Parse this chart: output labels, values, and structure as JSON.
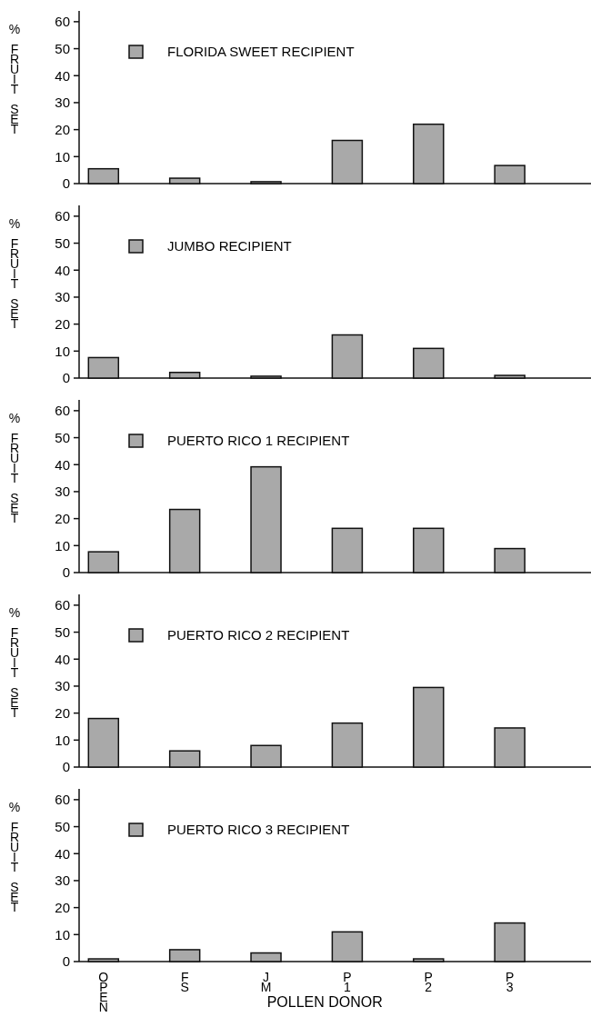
{
  "chart_data": [
    {
      "type": "bar",
      "categories": [
        "OPEN",
        "FS",
        "JM",
        "P1",
        "P2",
        "P3"
      ],
      "ylabel": "% FRUIT SET",
      "series": [
        {
          "name": "FLORIDA SWEET RECIPIENT",
          "color": "#a9a9a9",
          "values": [
            5.5,
            2,
            0.7,
            16,
            22,
            6.7
          ]
        }
      ],
      "ylim": [
        0,
        64
      ],
      "yticks": [
        0,
        10,
        20,
        30,
        40,
        50,
        60
      ],
      "legend": "top left",
      "tick_labels": "y"
    },
    {
      "type": "bar",
      "categories": [
        "OPEN",
        "FS",
        "JM",
        "P1",
        "P2",
        "P3"
      ],
      "ylabel": "% FRUIT SET",
      "series": [
        {
          "name": "JUMBO RECIPIENT",
          "color": "#a9a9a9",
          "values": [
            7.6,
            2.1,
            0.7,
            16,
            11,
            1
          ]
        }
      ],
      "ylim": [
        0,
        64
      ],
      "yticks": [
        0,
        10,
        20,
        30,
        40,
        50,
        60
      ],
      "legend": "top left",
      "tick_labels": "y"
    },
    {
      "type": "bar",
      "categories": [
        "OPEN",
        "FS",
        "JM",
        "P1",
        "P2",
        "P3"
      ],
      "ylabel": "% FRUIT SET",
      "series": [
        {
          "name": "PUERTO RICO 1 RECIPIENT",
          "color": "#a9a9a9",
          "values": [
            7.7,
            23.4,
            39.2,
            16.4,
            16.4,
            8.9
          ]
        }
      ],
      "ylim": [
        0,
        64
      ],
      "yticks": [
        0,
        10,
        20,
        30,
        40,
        50,
        60
      ],
      "legend": "top left",
      "tick_labels": "y"
    },
    {
      "type": "bar",
      "categories": [
        "OPEN",
        "FS",
        "JM",
        "P1",
        "P2",
        "P3"
      ],
      "ylabel": "% FRUIT SET",
      "series": [
        {
          "name": "PUERTO RICO 2 RECIPIENT",
          "color": "#a9a9a9",
          "values": [
            18,
            6,
            8,
            16.3,
            29.5,
            14.5
          ]
        }
      ],
      "ylim": [
        0,
        64
      ],
      "yticks": [
        0,
        10,
        20,
        30,
        40,
        50,
        60
      ],
      "legend": "top left",
      "tick_labels": "y"
    },
    {
      "type": "bar",
      "categories": [
        "OPEN",
        "FS",
        "JM",
        "P1",
        "P2",
        "P3"
      ],
      "xlabel": "POLLEN DONOR",
      "ylabel": "% FRUIT SET",
      "series": [
        {
          "name": "PUERTO RICO 3 RECIPIENT",
          "color": "#a9a9a9",
          "values": [
            1,
            4.4,
            3.2,
            11,
            1,
            14.3
          ]
        }
      ],
      "ylim": [
        0,
        64
      ],
      "yticks": [
        0,
        10,
        20,
        30,
        40,
        50,
        60
      ],
      "legend": "top left"
    }
  ]
}
